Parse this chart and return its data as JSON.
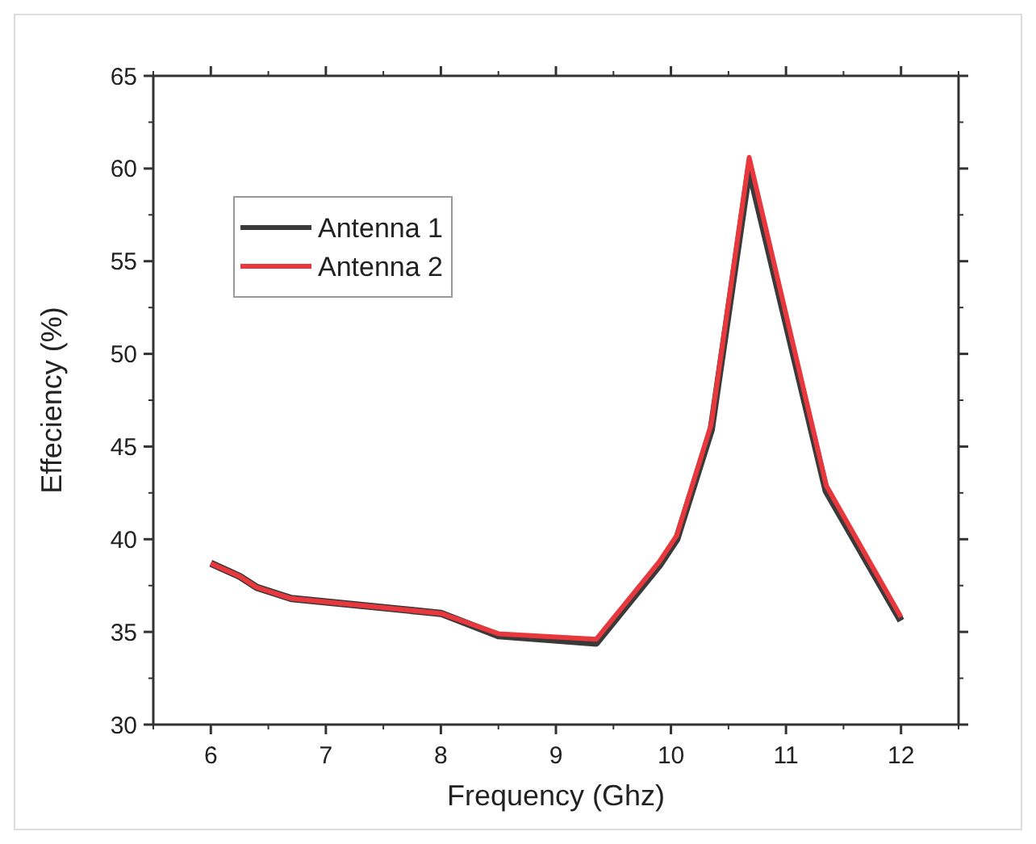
{
  "chart_data": {
    "type": "line",
    "xlabel": "Frequency (Ghz)",
    "ylabel": "Effeciency (%)",
    "xlim": [
      5.5,
      12.5
    ],
    "xticks": [
      6,
      7,
      8,
      9,
      10,
      11,
      12
    ],
    "ylim": [
      30,
      65
    ],
    "yticks": [
      30,
      35,
      40,
      45,
      50,
      55,
      60,
      65
    ],
    "grid": false,
    "legend": "top left",
    "marker": "none",
    "line_style": "solid",
    "series": [
      {
        "name": "Antenna 1",
        "color": "#3a3a3a",
        "x": [
          6,
          6.25,
          6.4,
          6.7,
          8,
          8.5,
          9.35,
          9.9,
          10.05,
          10.35,
          10.68,
          11.35,
          12
        ],
        "values": [
          38.7,
          38.0,
          37.4,
          36.8,
          36.0,
          34.8,
          34.4,
          38.6,
          40,
          45.9,
          60.0,
          42.6,
          35.6
        ]
      },
      {
        "name": "Antenna 2",
        "color": "#e8383d",
        "x": [
          6,
          6.25,
          6.4,
          6.7,
          8,
          8.5,
          9.35,
          9.9,
          10.05,
          10.35,
          10.68,
          11.35,
          12
        ],
        "values": [
          38.7,
          38.0,
          37.4,
          36.8,
          36.0,
          34.9,
          34.6,
          38.8,
          40.2,
          46.2,
          60.6,
          42.9,
          35.8
        ]
      }
    ]
  }
}
